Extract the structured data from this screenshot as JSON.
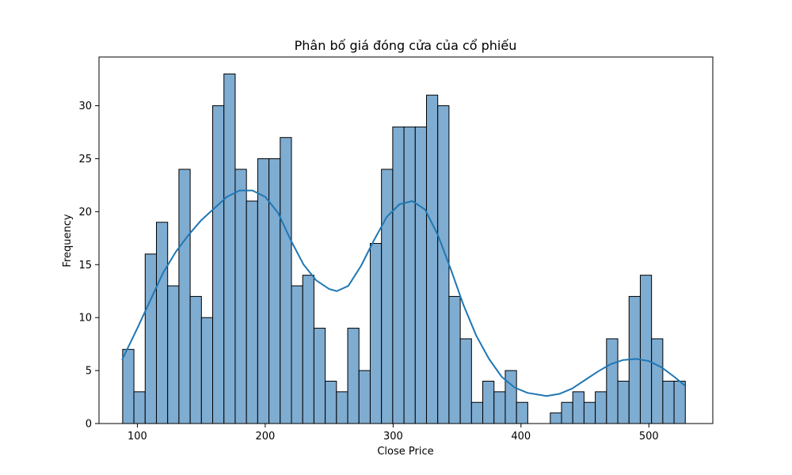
{
  "chart_data": {
    "type": "bar",
    "subtype": "histogram_with_kde",
    "title": "Phân bố giá đóng cửa của cổ phiếu",
    "xlabel": "Close Price",
    "ylabel": "Frequency",
    "xlim": [
      70,
      550
    ],
    "ylim": [
      0,
      34.6
    ],
    "xticks": [
      100,
      200,
      300,
      400,
      500
    ],
    "yticks": [
      0,
      5,
      10,
      15,
      20,
      25,
      30
    ],
    "grid": false,
    "bar_color": "#7facd1",
    "bar_edge_color": "#000000",
    "kde_color": "#1f77b4",
    "bin_start": 88.5,
    "bin_width": 8.8,
    "counts": [
      7,
      3,
      16,
      19,
      13,
      24,
      12,
      10,
      30,
      33,
      24,
      21,
      25,
      25,
      27,
      13,
      14,
      9,
      4,
      3,
      9,
      5,
      17,
      24,
      28,
      28,
      28,
      31,
      30,
      12,
      8,
      2,
      4,
      3,
      5,
      2,
      0,
      0,
      1,
      2,
      3,
      2,
      3,
      8,
      4,
      12,
      14,
      8,
      4,
      4
    ],
    "kde": {
      "x": [
        88,
        100,
        110,
        120,
        130,
        140,
        150,
        160,
        170,
        180,
        190,
        200,
        210,
        220,
        230,
        240,
        250,
        256,
        265,
        275,
        285,
        295,
        305,
        315,
        325,
        335,
        345,
        355,
        365,
        375,
        385,
        395,
        405,
        420,
        430,
        440,
        450,
        460,
        470,
        480,
        490,
        500,
        510,
        520,
        528
      ],
      "y": [
        6.0,
        9.0,
        11.6,
        14.2,
        16.2,
        17.8,
        19.2,
        20.3,
        21.4,
        22.0,
        22.0,
        21.4,
        19.9,
        17.3,
        15.0,
        13.5,
        12.7,
        12.5,
        13.0,
        14.9,
        17.3,
        19.5,
        20.7,
        21.0,
        20.2,
        17.8,
        14.6,
        11.2,
        8.3,
        6.1,
        4.4,
        3.4,
        2.9,
        2.6,
        2.8,
        3.3,
        4.1,
        4.9,
        5.6,
        6.0,
        6.1,
        5.9,
        5.3,
        4.4,
        3.6
      ]
    }
  }
}
